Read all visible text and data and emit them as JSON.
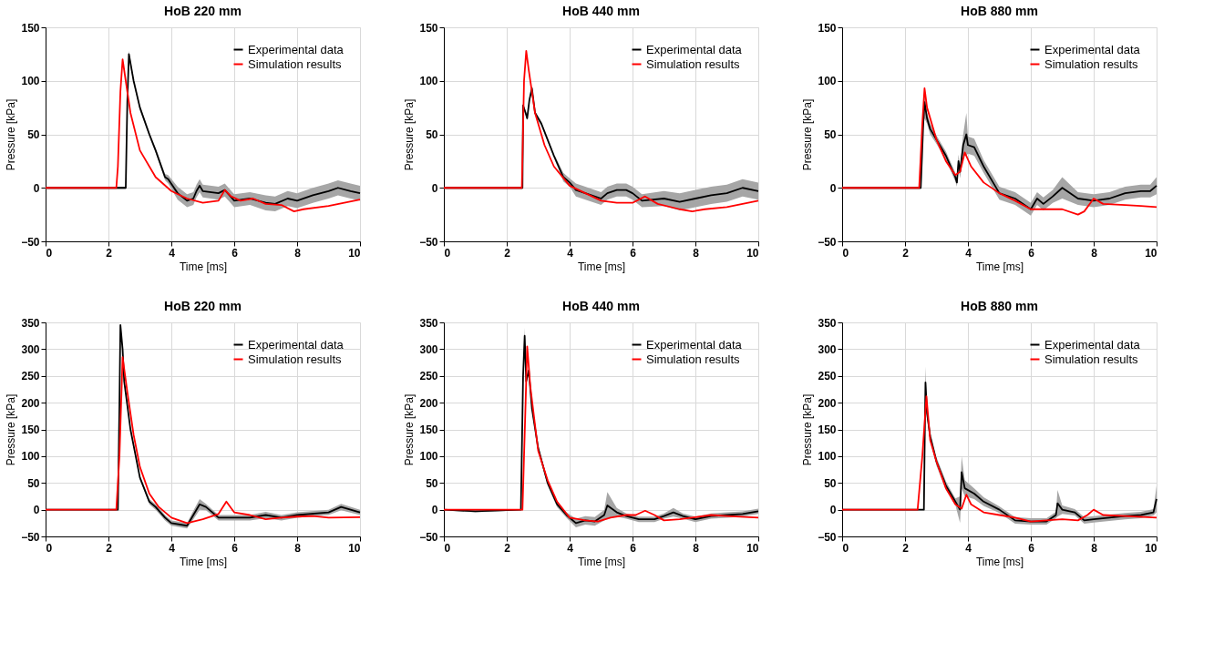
{
  "chart_data": [
    {
      "type": "line",
      "title": "HoB 220 mm",
      "xlabel": "Time [ms]",
      "ylabel": "Pressure [kPa]",
      "xlim": [
        0,
        10
      ],
      "xticks": [
        0,
        2,
        4,
        6,
        8,
        10
      ],
      "ylim": [
        -50,
        150
      ],
      "yticks": [
        -50,
        0,
        50,
        100,
        150
      ],
      "grid": true,
      "legend": "top right",
      "marker": "none",
      "line_style": "solid",
      "series": [
        {
          "name": "Experimental data",
          "color": "#000000",
          "x": [
            0,
            1,
            2,
            2.5,
            2.55,
            2.6,
            2.65,
            2.8,
            3.0,
            3.3,
            3.5,
            3.8,
            3.9,
            4.2,
            4.5,
            4.7,
            4.8,
            4.9,
            5.0,
            5.5,
            5.7,
            6.0,
            6.5,
            7.0,
            7.3,
            7.7,
            8.0,
            8.5,
            9.0,
            9.3,
            9.7,
            10
          ],
          "values": [
            0,
            0,
            0,
            0,
            0,
            80,
            125,
            100,
            75,
            50,
            35,
            10,
            8,
            -5,
            -12,
            -10,
            -3,
            2,
            -3,
            -5,
            -2,
            -12,
            -10,
            -14,
            -15,
            -10,
            -12,
            -7,
            -3,
            0,
            -3,
            -5
          ],
          "lower": [
            -1,
            -1,
            -1,
            -1,
            -1,
            78,
            122,
            98,
            73,
            48,
            33,
            7,
            4,
            -11,
            -18,
            -16,
            -9,
            -4,
            -9,
            -11,
            -8,
            -18,
            -16,
            -21,
            -22,
            -17,
            -19,
            -14,
            -10,
            -7,
            -10,
            -12
          ],
          "upper": [
            1,
            1,
            1,
            1,
            1,
            82,
            128,
            102,
            77,
            52,
            37,
            13,
            12,
            1,
            -6,
            -4,
            3,
            8,
            3,
            1,
            4,
            -6,
            -4,
            -7,
            -8,
            -3,
            -5,
            0,
            4,
            7,
            4,
            2
          ]
        },
        {
          "name": "Simulation results",
          "color": "#ff0000",
          "x": [
            0,
            2.25,
            2.3,
            2.38,
            2.45,
            2.55,
            2.7,
            3.0,
            3.5,
            4.0,
            4.5,
            5.0,
            5.5,
            5.7,
            5.9,
            6.2,
            6.6,
            7.0,
            7.5,
            7.9,
            8.2,
            9.0,
            10
          ],
          "values": [
            0,
            0,
            20,
            90,
            120,
            100,
            70,
            35,
            10,
            -3,
            -10,
            -14,
            -12,
            -2,
            -8,
            -12,
            -10,
            -15,
            -16,
            -22,
            -20,
            -17,
            -11
          ]
        }
      ]
    },
    {
      "type": "line",
      "title": "HoB 440 mm",
      "xlabel": "Time [ms]",
      "ylabel": "Pressure [kPa]",
      "xlim": [
        0,
        10
      ],
      "xticks": [
        0,
        2,
        4,
        6,
        8,
        10
      ],
      "ylim": [
        -50,
        150
      ],
      "yticks": [
        -50,
        0,
        50,
        100,
        150
      ],
      "grid": true,
      "legend": "top right",
      "marker": "none",
      "line_style": "solid",
      "series": [
        {
          "name": "Experimental data",
          "color": "#000000",
          "x": [
            0,
            2,
            2.5,
            2.52,
            2.6,
            2.65,
            2.72,
            2.8,
            2.9,
            3.1,
            3.5,
            3.8,
            4.0,
            4.2,
            4.5,
            5.0,
            5.2,
            5.5,
            5.8,
            6.0,
            6.3,
            7.0,
            7.5,
            8.0,
            8.5,
            9.0,
            9.5,
            10
          ],
          "values": [
            0,
            0,
            0,
            77,
            70,
            65,
            82,
            93,
            70,
            60,
            30,
            10,
            5,
            -2,
            -5,
            -10,
            -5,
            -2,
            -2,
            -5,
            -12,
            -10,
            -13,
            -10,
            -7,
            -5,
            0,
            -3
          ],
          "lower": [
            -1,
            -1,
            -1,
            75,
            68,
            63,
            80,
            91,
            68,
            58,
            28,
            6,
            1,
            -8,
            -11,
            -16,
            -11,
            -8,
            -8,
            -11,
            -18,
            -17,
            -21,
            -18,
            -15,
            -13,
            -8,
            -11
          ],
          "upper": [
            1,
            1,
            1,
            79,
            72,
            67,
            84,
            95,
            72,
            62,
            32,
            14,
            9,
            4,
            1,
            -4,
            1,
            4,
            4,
            1,
            -6,
            -3,
            -5,
            -2,
            1,
            3,
            8,
            5
          ]
        },
        {
          "name": "Simulation results",
          "color": "#ff0000",
          "x": [
            0,
            2.48,
            2.55,
            2.62,
            2.7,
            2.9,
            3.2,
            3.5,
            4.0,
            4.5,
            5.0,
            5.5,
            6.0,
            6.4,
            6.8,
            7.5,
            7.9,
            8.3,
            9.0,
            10
          ],
          "values": [
            0,
            0,
            100,
            128,
            110,
            70,
            40,
            20,
            2,
            -5,
            -12,
            -14,
            -14,
            -8,
            -15,
            -20,
            -22,
            -20,
            -18,
            -12
          ]
        }
      ]
    },
    {
      "type": "line",
      "title": "HoB 880 mm",
      "xlabel": "Time [ms]",
      "ylabel": "Pressure [kPa]",
      "xlim": [
        0,
        10
      ],
      "xticks": [
        0,
        2,
        4,
        6,
        8,
        10
      ],
      "ylim": [
        -50,
        150
      ],
      "yticks": [
        -50,
        0,
        50,
        100,
        150
      ],
      "grid": true,
      "legend": "top right",
      "marker": "none",
      "line_style": "solid",
      "series": [
        {
          "name": "Experimental data",
          "color": "#000000",
          "x": [
            0,
            2,
            2.5,
            2.58,
            2.62,
            2.7,
            2.8,
            3.0,
            3.3,
            3.6,
            3.65,
            3.7,
            3.75,
            3.85,
            3.95,
            4.0,
            4.2,
            4.5,
            4.8,
            5.0,
            5.5,
            6.0,
            6.2,
            6.4,
            6.7,
            7.0,
            7.5,
            8.0,
            8.5,
            9.0,
            9.5,
            9.8,
            10
          ],
          "values": [
            0,
            0,
            0,
            60,
            80,
            65,
            55,
            45,
            30,
            10,
            5,
            25,
            15,
            40,
            50,
            40,
            38,
            20,
            5,
            -5,
            -10,
            -20,
            -10,
            -15,
            -8,
            0,
            -10,
            -12,
            -10,
            -5,
            -3,
            -3,
            2
          ],
          "lower": [
            -1,
            -1,
            -1,
            56,
            65,
            60,
            50,
            41,
            26,
            6,
            1,
            19,
            9,
            30,
            30,
            32,
            30,
            14,
            -1,
            -11,
            -16,
            -26,
            -16,
            -21,
            -14,
            -10,
            -16,
            -18,
            -16,
            -11,
            -9,
            -9,
            -6
          ],
          "upper": [
            1,
            1,
            1,
            64,
            95,
            70,
            60,
            49,
            34,
            14,
            9,
            31,
            21,
            50,
            70,
            48,
            46,
            26,
            11,
            1,
            -4,
            -14,
            -4,
            -9,
            -2,
            10,
            -4,
            -6,
            -4,
            1,
            3,
            3,
            10
          ]
        },
        {
          "name": "Simulation results",
          "color": "#ff0000",
          "x": [
            0,
            2.45,
            2.55,
            2.62,
            2.7,
            3.0,
            3.3,
            3.6,
            3.75,
            3.9,
            4.1,
            4.5,
            5.0,
            5.5,
            6.0,
            6.5,
            7.0,
            7.5,
            7.7,
            8.0,
            8.3,
            9.0,
            9.5,
            10
          ],
          "values": [
            0,
            0,
            60,
            93,
            75,
            45,
            25,
            12,
            15,
            33,
            20,
            5,
            -5,
            -12,
            -20,
            -20,
            -20,
            -25,
            -22,
            -10,
            -15,
            -16,
            -17,
            -18
          ]
        }
      ]
    },
    {
      "type": "line",
      "title": "HoB 220 mm",
      "xlabel": "Time [ms]",
      "ylabel": "Pressure [kPa]",
      "xlim": [
        0,
        10
      ],
      "xticks": [
        0,
        2,
        4,
        6,
        8,
        10
      ],
      "ylim": [
        -50,
        350
      ],
      "yticks": [
        -50,
        0,
        50,
        100,
        150,
        200,
        250,
        300,
        350
      ],
      "grid": true,
      "legend": "top right",
      "marker": "none",
      "line_style": "solid",
      "series": [
        {
          "name": "Experimental data",
          "color": "#000000",
          "x": [
            0,
            2,
            2.3,
            2.35,
            2.38,
            2.45,
            2.5,
            2.7,
            3.0,
            3.3,
            3.5,
            3.8,
            4.0,
            4.5,
            4.7,
            4.9,
            5.1,
            5.5,
            6.0,
            6.5,
            7.0,
            7.5,
            8.0,
            9.0,
            9.4,
            10
          ],
          "values": [
            0,
            0,
            0,
            200,
            345,
            300,
            240,
            150,
            60,
            15,
            5,
            -15,
            -25,
            -30,
            -10,
            10,
            5,
            -15,
            -15,
            -15,
            -10,
            -15,
            -10,
            -5,
            5,
            -5
          ],
          "lower": [
            -1,
            -1,
            -1,
            197,
            342,
            297,
            237,
            147,
            57,
            10,
            0,
            -20,
            -30,
            -35,
            -18,
            0,
            -1,
            -20,
            -20,
            -20,
            -16,
            -20,
            -15,
            -10,
            -1,
            -10
          ],
          "upper": [
            1,
            1,
            1,
            203,
            348,
            303,
            243,
            153,
            63,
            20,
            10,
            -10,
            -20,
            -25,
            -2,
            20,
            11,
            -10,
            -10,
            -10,
            -4,
            -10,
            -5,
            0,
            11,
            0
          ]
        },
        {
          "name": "Simulation results",
          "color": "#ff0000",
          "x": [
            0,
            2.25,
            2.35,
            2.45,
            2.6,
            2.8,
            3.0,
            3.3,
            3.6,
            4.0,
            4.5,
            5.0,
            5.5,
            5.75,
            6.0,
            6.5,
            7.0,
            7.5,
            8.0,
            8.5,
            9.0,
            10
          ],
          "values": [
            0,
            0,
            100,
            285,
            220,
            140,
            80,
            30,
            5,
            -15,
            -25,
            -18,
            -8,
            15,
            -5,
            -10,
            -18,
            -15,
            -13,
            -12,
            -15,
            -14
          ]
        }
      ]
    },
    {
      "type": "line",
      "title": "HoB 440 mm",
      "xlabel": "Time [ms]",
      "ylabel": "Pressure [kPa]",
      "xlim": [
        0,
        10
      ],
      "xticks": [
        0,
        2,
        4,
        6,
        8,
        10
      ],
      "ylim": [
        -50,
        350
      ],
      "yticks": [
        -50,
        0,
        50,
        100,
        150,
        200,
        250,
        300,
        350
      ],
      "grid": true,
      "legend": "top right",
      "marker": "none",
      "line_style": "solid",
      "series": [
        {
          "name": "Experimental data",
          "color": "#000000",
          "x": [
            0,
            1,
            2.45,
            2.52,
            2.57,
            2.62,
            2.7,
            2.8,
            3.0,
            3.3,
            3.6,
            3.9,
            4.2,
            4.5,
            4.8,
            5.1,
            5.2,
            5.5,
            5.8,
            6.2,
            6.7,
            7.0,
            7.3,
            7.6,
            8.0,
            8.5,
            9.0,
            9.5,
            10
          ],
          "values": [
            0,
            -3,
            0,
            250,
            325,
            240,
            260,
            190,
            115,
            50,
            10,
            -10,
            -25,
            -20,
            -22,
            -10,
            8,
            -5,
            -12,
            -18,
            -18,
            -12,
            -5,
            -12,
            -18,
            -12,
            -10,
            -8,
            -3
          ],
          "lower": [
            -1,
            -5,
            -1,
            245,
            310,
            235,
            255,
            185,
            110,
            45,
            5,
            -15,
            -33,
            -28,
            -30,
            -20,
            -17,
            -13,
            -17,
            -23,
            -23,
            -17,
            -13,
            -17,
            -23,
            -17,
            -15,
            -13,
            -8
          ],
          "upper": [
            1,
            -1,
            1,
            255,
            340,
            245,
            265,
            195,
            120,
            55,
            15,
            -5,
            -17,
            -12,
            -14,
            0,
            33,
            3,
            -7,
            -13,
            -13,
            -7,
            3,
            -7,
            -13,
            -7,
            -5,
            -3,
            2
          ]
        },
        {
          "name": "Simulation results",
          "color": "#ff0000",
          "x": [
            0,
            2.5,
            2.6,
            2.65,
            2.75,
            3.0,
            3.3,
            3.6,
            4.0,
            4.5,
            4.9,
            5.3,
            5.8,
            6.1,
            6.4,
            6.7,
            7.0,
            7.5,
            8.0,
            8.5,
            9.0,
            10
          ],
          "values": [
            0,
            0,
            200,
            305,
            230,
            110,
            55,
            15,
            -15,
            -20,
            -22,
            -15,
            -10,
            -10,
            -2,
            -10,
            -20,
            -18,
            -14,
            -10,
            -12,
            -15
          ]
        }
      ]
    },
    {
      "type": "line",
      "title": "HoB 880 mm",
      "xlabel": "Time [ms]",
      "ylabel": "Pressure [kPa]",
      "xlim": [
        0,
        10
      ],
      "xticks": [
        0,
        2,
        4,
        6,
        8,
        10
      ],
      "ylim": [
        -50,
        350
      ],
      "yticks": [
        -50,
        0,
        50,
        100,
        150,
        200,
        250,
        300,
        350
      ],
      "grid": true,
      "legend": "top right",
      "marker": "none",
      "line_style": "solid",
      "series": [
        {
          "name": "Experimental data",
          "color": "#000000",
          "x": [
            0,
            2,
            2.6,
            2.62,
            2.65,
            2.7,
            2.8,
            3.0,
            3.3,
            3.6,
            3.75,
            3.8,
            3.9,
            4.2,
            4.5,
            5.0,
            5.5,
            6.0,
            6.5,
            6.8,
            6.85,
            7.0,
            7.4,
            7.7,
            8.0,
            8.5,
            9.0,
            9.5,
            9.9,
            10
          ],
          "values": [
            0,
            0,
            0,
            100,
            238,
            180,
            137,
            90,
            45,
            15,
            0,
            70,
            40,
            30,
            15,
            0,
            -20,
            -22,
            -22,
            -10,
            12,
            0,
            -5,
            -20,
            -18,
            -15,
            -12,
            -10,
            -5,
            20
          ],
          "lower": [
            -1,
            -1,
            -1,
            95,
            208,
            170,
            129,
            82,
            37,
            9,
            -25,
            40,
            25,
            20,
            7,
            -6,
            -26,
            -28,
            -28,
            -16,
            -13,
            -8,
            -11,
            -26,
            -24,
            -21,
            -18,
            -16,
            -11,
            -5
          ],
          "upper": [
            1,
            1,
            1,
            105,
            268,
            190,
            145,
            98,
            53,
            21,
            25,
            100,
            55,
            40,
            23,
            6,
            -14,
            -16,
            -16,
            -4,
            37,
            8,
            1,
            -14,
            -12,
            -9,
            -6,
            -4,
            1,
            45
          ]
        },
        {
          "name": "Simulation results",
          "color": "#ff0000",
          "x": [
            0,
            2.4,
            2.55,
            2.68,
            2.8,
            3.0,
            3.3,
            3.6,
            3.8,
            3.95,
            4.1,
            4.5,
            5.0,
            5.5,
            6.0,
            6.5,
            7.0,
            7.5,
            7.8,
            8.0,
            8.3,
            9.0,
            10
          ],
          "values": [
            0,
            0,
            100,
            212,
            130,
            90,
            40,
            10,
            2,
            28,
            10,
            -5,
            -10,
            -15,
            -22,
            -20,
            -18,
            -20,
            -10,
            0,
            -10,
            -12,
            -15
          ]
        }
      ]
    }
  ]
}
